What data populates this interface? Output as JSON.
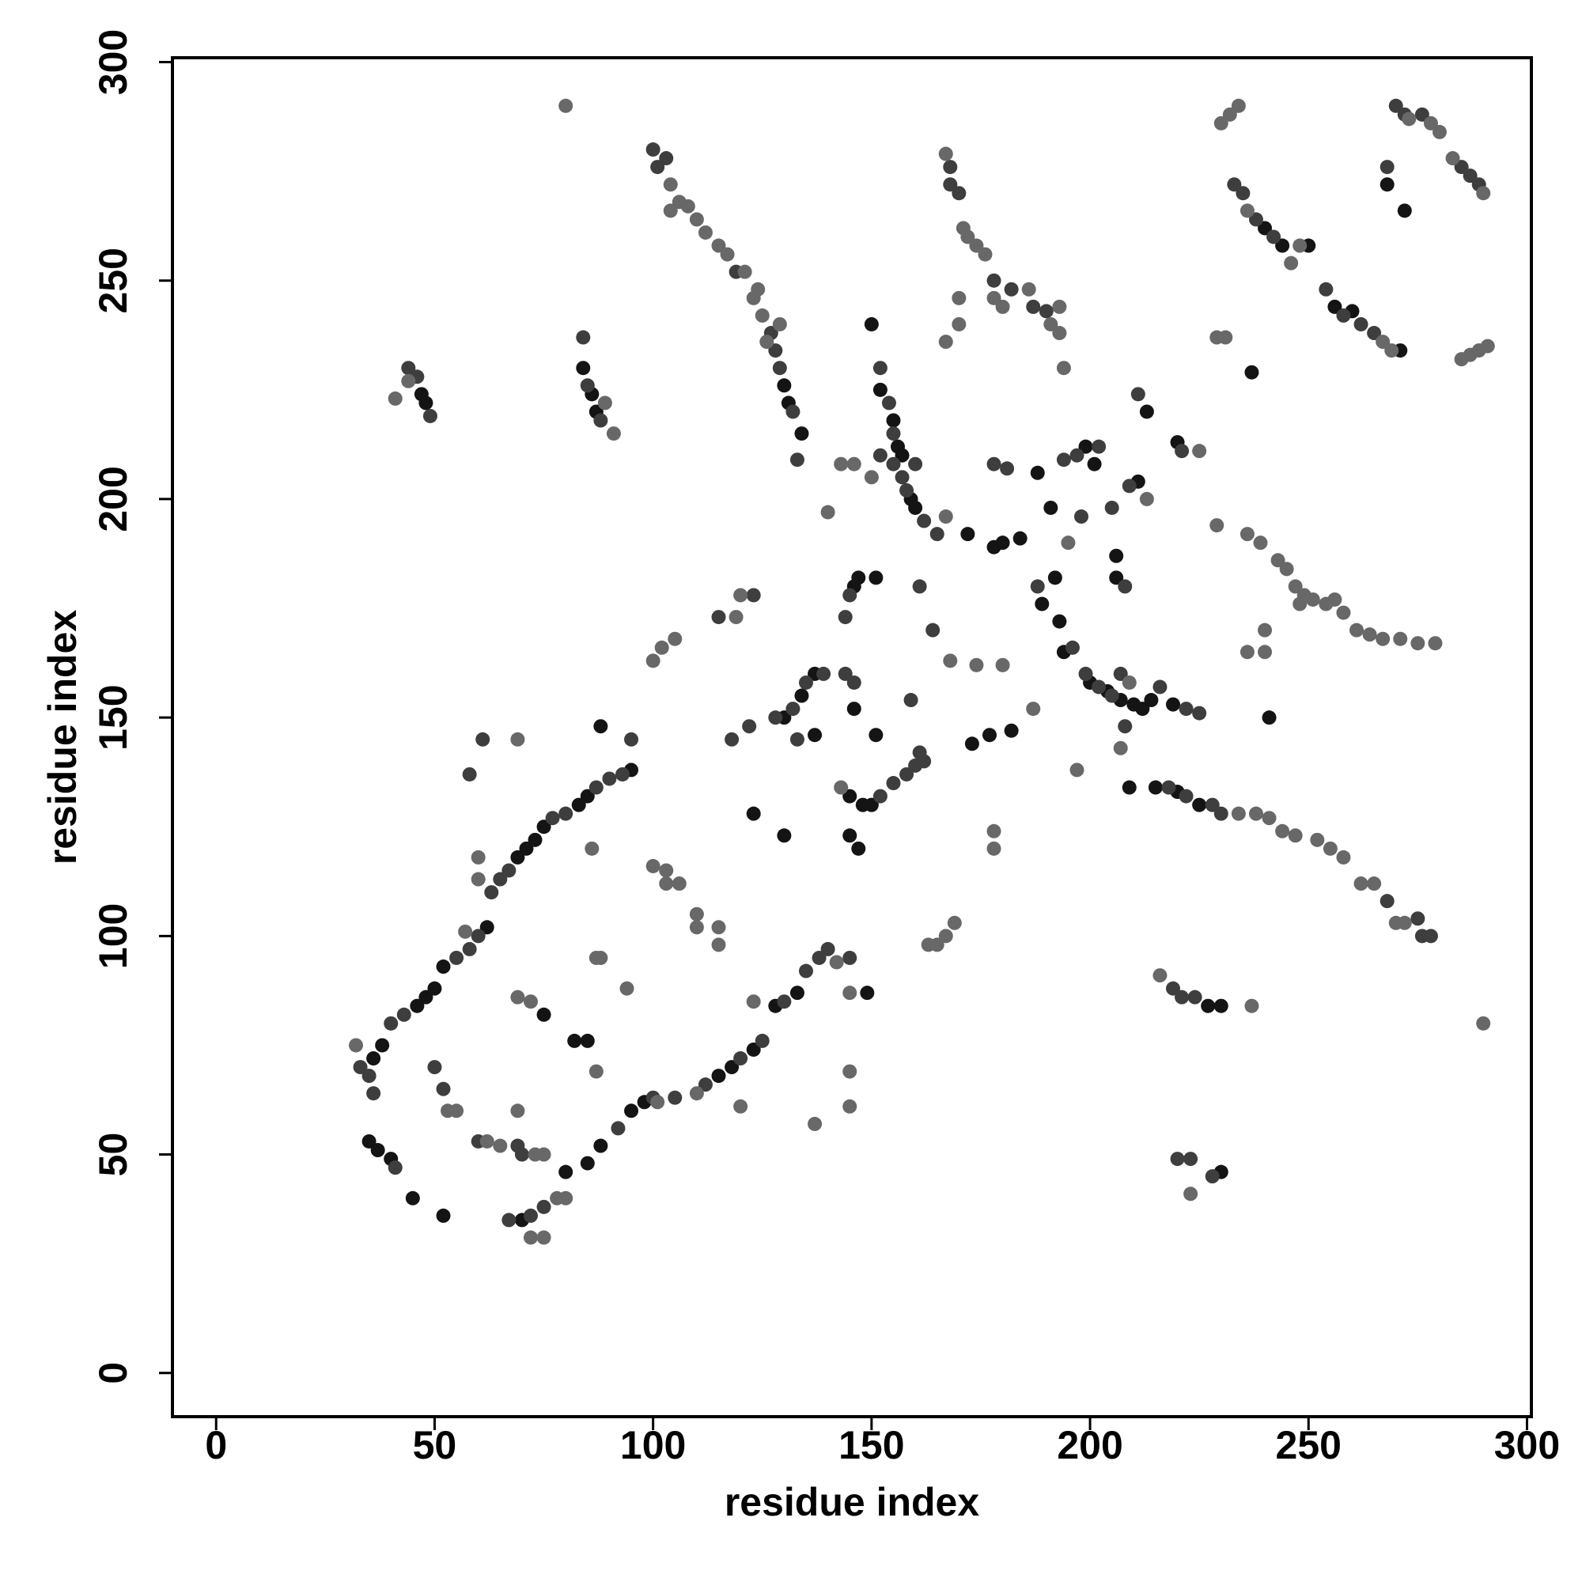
{
  "chart_data": {
    "type": "scatter",
    "xlabel": "residue index",
    "ylabel": "residue index",
    "xlim": [
      -10,
      301
    ],
    "ylim": [
      -10,
      301
    ],
    "xticks": [
      0,
      50,
      100,
      150,
      200,
      250,
      300
    ],
    "yticks": [
      0,
      50,
      100,
      150,
      200,
      250,
      300
    ],
    "grid": false,
    "series": [
      {
        "color": "#141414",
        "x": [
          46,
          48,
          50,
          52,
          62,
          69,
          71,
          73,
          75,
          83,
          85,
          95,
          88,
          36,
          38,
          35,
          37,
          40,
          45,
          52,
          70,
          80,
          85,
          88,
          95,
          98,
          115,
          118,
          123,
          128,
          133,
          75,
          82,
          85,
          130,
          134,
          137,
          137,
          146,
          151,
          145,
          148,
          150,
          145,
          147,
          146,
          147,
          151,
          150,
          152,
          155,
          156,
          157,
          159,
          160,
          173,
          177,
          182,
          172,
          178,
          180,
          184,
          188,
          199,
          201,
          191,
          192,
          189,
          193,
          194,
          200,
          204,
          207,
          210,
          212,
          214,
          219,
          206,
          206,
          211,
          213,
          220,
          215,
          220,
          225,
          230,
          227,
          230,
          241,
          240,
          244,
          250,
          256,
          260,
          268,
          272,
          271,
          130,
          131,
          134,
          86,
          87,
          47,
          48,
          84,
          123,
          130,
          149,
          209,
          237
        ],
        "values": [
          84,
          86,
          88,
          93,
          102,
          118,
          120,
          122,
          125,
          130,
          132,
          138,
          148,
          72,
          75,
          53,
          51,
          49,
          40,
          36,
          35,
          46,
          48,
          52,
          60,
          62,
          68,
          70,
          74,
          84,
          87,
          82,
          76,
          76,
          150,
          155,
          160,
          146,
          152,
          146,
          132,
          130,
          130,
          123,
          120,
          180,
          182,
          182,
          240,
          225,
          218,
          212,
          210,
          200,
          198,
          144,
          146,
          147,
          192,
          189,
          190,
          191,
          206,
          212,
          208,
          198,
          182,
          176,
          172,
          165,
          158,
          156,
          154,
          153,
          152,
          154,
          153,
          187,
          182,
          204,
          220,
          213,
          134,
          133,
          130,
          84,
          84,
          46,
          150,
          262,
          258,
          258,
          244,
          243,
          272,
          266,
          234,
          226,
          222,
          215,
          224,
          220,
          224,
          222,
          230,
          128,
          123,
          87,
          134,
          229
        ]
      },
      {
        "color": "#3e3e3e",
        "x": [
          40,
          43,
          55,
          58,
          60,
          63,
          65,
          67,
          77,
          80,
          87,
          90,
          93,
          95,
          41,
          33,
          35,
          36,
          50,
          52,
          60,
          69,
          70,
          67,
          72,
          75,
          92,
          100,
          105,
          112,
          120,
          125,
          130,
          135,
          138,
          140,
          145,
          61,
          58,
          128,
          132,
          135,
          139,
          144,
          146,
          133,
          152,
          155,
          158,
          160,
          162,
          159,
          161,
          144,
          145,
          152,
          154,
          155,
          155,
          157,
          158,
          162,
          165,
          152,
          160,
          161,
          164,
          168,
          168,
          170,
          178,
          181,
          194,
          197,
          202,
          198,
          205,
          209,
          188,
          196,
          199,
          202,
          205,
          216,
          222,
          225,
          207,
          208,
          208,
          211,
          221,
          218,
          222,
          228,
          230,
          219,
          221,
          224,
          220,
          223,
          228,
          275,
          278,
          276,
          233,
          235,
          238,
          242,
          254,
          258,
          262,
          265,
          268,
          270,
          272,
          276,
          285,
          289,
          287,
          100,
          101,
          103,
          127,
          128,
          129,
          132,
          133,
          44,
          46,
          49,
          85,
          88,
          84,
          119,
          118,
          122,
          123,
          115,
          178,
          182,
          187,
          190,
          268
        ],
        "values": [
          80,
          82,
          95,
          97,
          100,
          110,
          113,
          115,
          127,
          128,
          134,
          136,
          137,
          145,
          47,
          70,
          68,
          64,
          70,
          65,
          53,
          52,
          50,
          35,
          36,
          38,
          56,
          63,
          63,
          66,
          72,
          76,
          85,
          92,
          95,
          97,
          95,
          145,
          137,
          150,
          152,
          158,
          160,
          160,
          158,
          145,
          132,
          135,
          137,
          139,
          140,
          154,
          142,
          173,
          178,
          230,
          222,
          215,
          208,
          205,
          202,
          195,
          192,
          210,
          208,
          180,
          170,
          276,
          272,
          270,
          208,
          207,
          209,
          210,
          212,
          196,
          198,
          203,
          180,
          166,
          160,
          157,
          155,
          157,
          152,
          151,
          160,
          148,
          180,
          224,
          211,
          134,
          132,
          130,
          128,
          88,
          86,
          86,
          49,
          49,
          45,
          104,
          100,
          100,
          272,
          270,
          264,
          260,
          248,
          242,
          240,
          238,
          276,
          290,
          288,
          288,
          276,
          272,
          274,
          280,
          276,
          278,
          238,
          234,
          230,
          220,
          209,
          230,
          228,
          219,
          226,
          218,
          237,
          252,
          145,
          148,
          178,
          173,
          250,
          248,
          244,
          243,
          108
        ]
      },
      {
        "color": "#686868",
        "x": [
          57,
          60,
          60,
          69,
          32,
          53,
          55,
          62,
          65,
          73,
          75,
          69,
          69,
          72,
          87,
          87,
          88,
          94,
          72,
          75,
          78,
          80,
          86,
          100,
          103,
          103,
          106,
          110,
          110,
          115,
          115,
          120,
          110,
          123,
          137,
          145,
          145,
          145,
          142,
          101,
          119,
          120,
          100,
          102,
          105,
          143,
          140,
          143,
          146,
          150,
          163,
          165,
          167,
          169,
          170,
          167,
          170,
          167,
          171,
          172,
          174,
          176,
          178,
          180,
          186,
          191,
          193,
          193,
          194,
          174,
          180,
          187,
          178,
          178,
          168,
          197,
          229,
          195,
          234,
          238,
          241,
          244,
          247,
          252,
          255,
          258,
          262,
          265,
          270,
          272,
          216,
          237,
          223,
          290,
          230,
          232,
          234,
          236,
          246,
          248,
          267,
          269,
          273,
          278,
          280,
          283,
          290,
          285,
          287,
          289,
          291,
          229,
          231,
          236,
          239,
          243,
          245,
          247,
          249,
          251,
          254,
          256,
          258,
          261,
          264,
          267,
          271,
          275,
          279,
          248,
          236,
          240,
          240,
          104,
          106,
          108,
          110,
          112,
          115,
          117,
          121,
          123,
          125,
          124,
          80,
          41,
          44,
          89,
          91,
          104,
          129,
          126,
          225,
          213,
          207,
          209,
          167
        ],
        "values": [
          101,
          118,
          113,
          145,
          75,
          60,
          60,
          53,
          52,
          50,
          50,
          60,
          86,
          85,
          69,
          95,
          95,
          88,
          31,
          31,
          40,
          40,
          120,
          116,
          115,
          112,
          112,
          105,
          102,
          102,
          98,
          61,
          64,
          85,
          57,
          69,
          61,
          87,
          94,
          62,
          173,
          178,
          163,
          166,
          168,
          134,
          197,
          208,
          208,
          205,
          98,
          98,
          100,
          103,
          240,
          236,
          246,
          279,
          262,
          260,
          258,
          256,
          246,
          244,
          248,
          240,
          238,
          244,
          230,
          162,
          162,
          152,
          124,
          120,
          163,
          138,
          194,
          190,
          128,
          128,
          127,
          124,
          123,
          122,
          120,
          118,
          112,
          112,
          103,
          103,
          91,
          84,
          41,
          80,
          286,
          288,
          290,
          266,
          254,
          258,
          236,
          234,
          287,
          286,
          284,
          278,
          270,
          232,
          233,
          234,
          235,
          237,
          237,
          192,
          190,
          186,
          184,
          180,
          178,
          177,
          176,
          177,
          174,
          170,
          169,
          168,
          168,
          167,
          167,
          176,
          165,
          165,
          170,
          272,
          268,
          267,
          264,
          261,
          258,
          256,
          252,
          246,
          242,
          248,
          290,
          223,
          227,
          222,
          215,
          266,
          240,
          236,
          211,
          200,
          143,
          158,
          196
        ]
      }
    ]
  }
}
